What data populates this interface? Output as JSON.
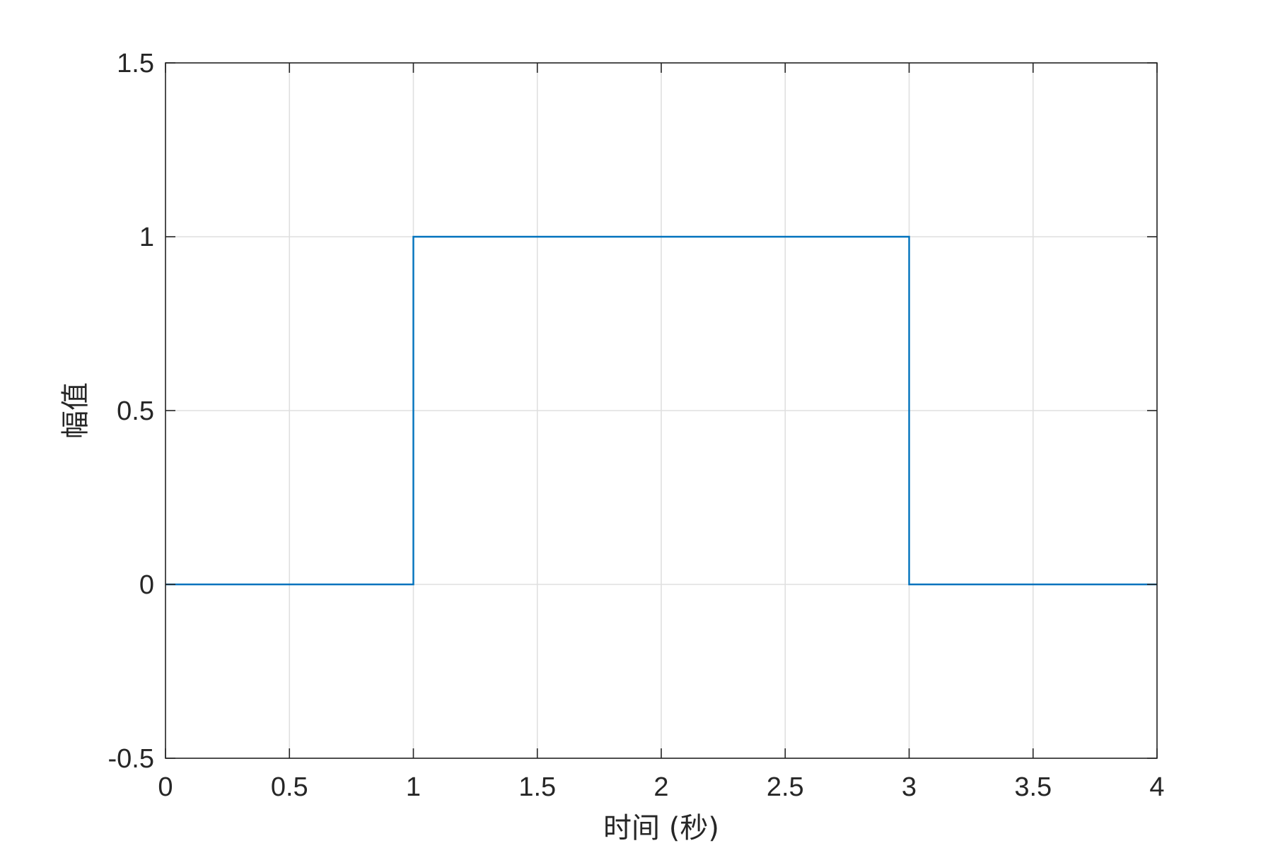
{
  "chart_data": {
    "type": "line",
    "title": "",
    "xlabel": "时间 (秒)",
    "ylabel": "幅值",
    "xlim": [
      0,
      4
    ],
    "ylim": [
      -0.5,
      1.5
    ],
    "grid": true,
    "x_ticks": [
      {
        "value": 0,
        "label": "0"
      },
      {
        "value": 0.5,
        "label": "0.5"
      },
      {
        "value": 1,
        "label": "1"
      },
      {
        "value": 1.5,
        "label": "1.5"
      },
      {
        "value": 2,
        "label": "2"
      },
      {
        "value": 2.5,
        "label": "2.5"
      },
      {
        "value": 3,
        "label": "3"
      },
      {
        "value": 3.5,
        "label": "3.5"
      },
      {
        "value": 4,
        "label": "4"
      }
    ],
    "y_ticks": [
      {
        "value": -0.5,
        "label": "-0.5"
      },
      {
        "value": 0,
        "label": "0"
      },
      {
        "value": 0.5,
        "label": "0.5"
      },
      {
        "value": 1,
        "label": "1"
      },
      {
        "value": 1.5,
        "label": "1.5"
      }
    ],
    "series": [
      {
        "color": "#0072BD",
        "x": [
          0,
          1,
          1,
          3,
          3,
          4
        ],
        "y": [
          0,
          0,
          1,
          1,
          0,
          0
        ]
      }
    ]
  },
  "colors": {
    "line": "#0072BD",
    "axes": "#262626",
    "grid": "#DFDFDF"
  }
}
